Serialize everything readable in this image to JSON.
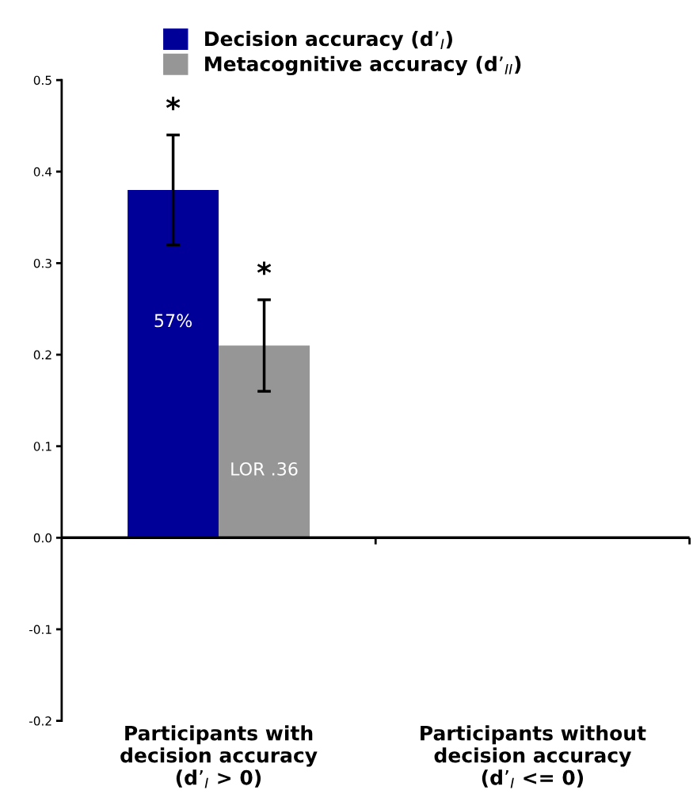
{
  "chart_data": {
    "type": "bar",
    "categories": [
      "Participants with\ndecision accuracy\n(d’$_{I}$ > 0)",
      "Participants without\ndecision accuracy\n(d’$_{I}$ <= 0)"
    ],
    "series": [
      {
        "name": "Decision accuracy (d’$_{I}$)",
        "color": "#000099",
        "values": [
          0.38,
          0.0
        ],
        "errors": [
          0.06,
          null
        ]
      },
      {
        "name": "Metacognitive accuracy (d’$_{II}$)",
        "color": "#969696",
        "values": [
          0.21,
          0.0
        ],
        "errors": [
          0.05,
          null
        ]
      }
    ],
    "annotations": [
      "*",
      "*",
      "57%",
      "LOR .36"
    ],
    "ylim": [
      -0.2,
      0.5
    ],
    "yticks": [
      -0.2,
      -0.1,
      {
        "value": 0,
        "label": "0.0"
      },
      0.1,
      0.2,
      0.3,
      0.4,
      0.5
    ],
    "ref_lines": [
      {
        "axis": "y",
        "value": 0,
        "color": "#000000"
      }
    ],
    "legend": "top",
    "grid": false
  }
}
